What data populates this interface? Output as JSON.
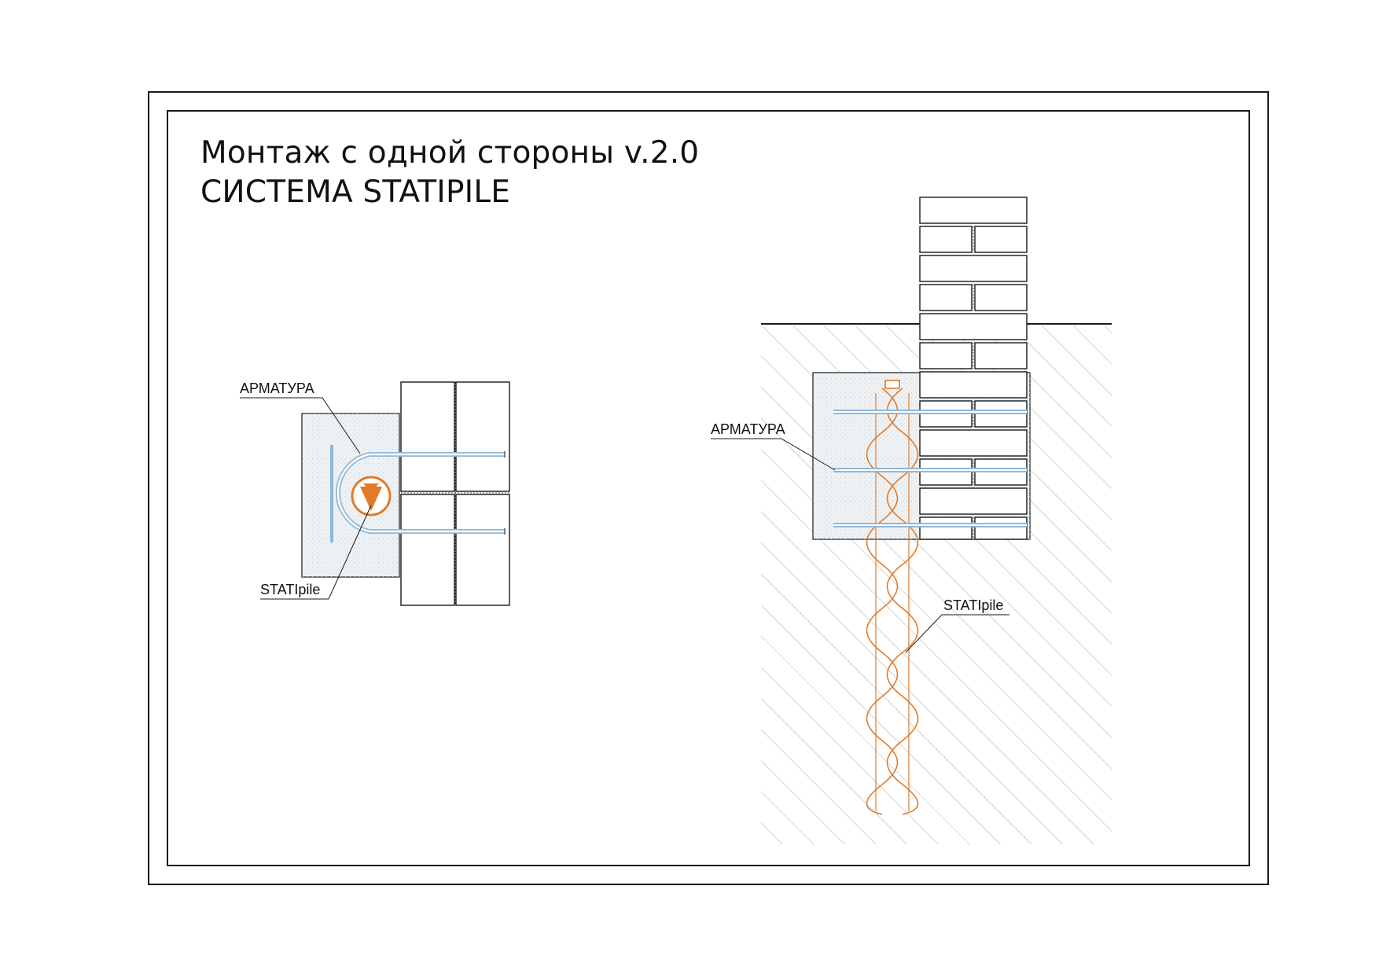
{
  "title": {
    "line1": "Монтаж с одной стороны v.2.0",
    "line2": "СИСТЕМА STATIPILE"
  },
  "plan_view": {
    "rebar_label": "АРМАТУРА",
    "pile_label": "STATIpile"
  },
  "section_view": {
    "rebar_label": "АРМАТУРА",
    "pile_label": "STATIpile"
  },
  "colors": {
    "line": "#1a1a1a",
    "pile_orange": "#e07b2a",
    "rebar_blue": "#8fb8d8",
    "concrete_fill": "#eef1f3",
    "hatch": "#9a9a9a"
  }
}
